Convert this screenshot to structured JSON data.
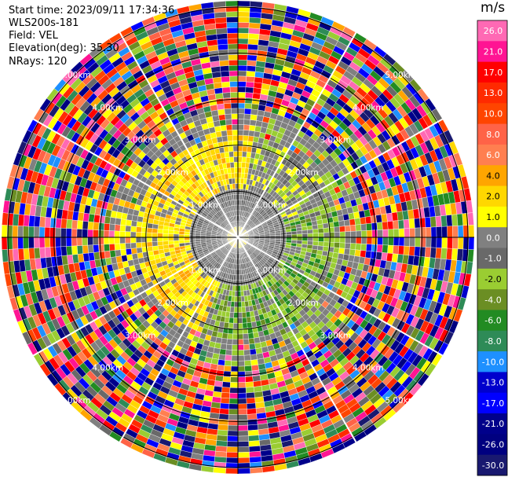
{
  "info": {
    "start_time": "Start time: 2023/09/11 17:34:36",
    "instrument": "WLS200s-181",
    "field": "Field: VEL",
    "elevation": "Elevation(deg): 35.30",
    "nrays": "NRays: 120"
  },
  "colorbar": {
    "unit": "m/s",
    "ticks": [
      "26.0",
      "21.0",
      "17.0",
      "13.0",
      "10.0",
      "8.0",
      "6.0",
      "4.0",
      "2.0",
      "1.0",
      "0.0",
      "-1.0",
      "-2.0",
      "-4.0",
      "-6.0",
      "-8.0",
      "-10.0",
      "-13.0",
      "-17.0",
      "-21.0",
      "-26.0",
      "-30.0"
    ],
    "colors": [
      "#ff69b4",
      "#ff1493",
      "#ff0000",
      "#ff2a00",
      "#ff4500",
      "#ff6347",
      "#ff7f50",
      "#ffa500",
      "#ffd700",
      "#ffff00",
      "#808080",
      "#696969",
      "#9acd32",
      "#6b8e23",
      "#228b22",
      "#2e8b57",
      "#1e90ff",
      "#0000cd",
      "#0000ff",
      "#00008b",
      "#000080",
      "#191970"
    ]
  },
  "chart_data": {
    "type": "heatmap",
    "title": "",
    "field": "VEL",
    "units": "m/s",
    "nrays": 120,
    "elevation_deg": 35.3,
    "range_ring_labels": [
      "1.00km",
      "2.00km",
      "3.00km",
      "4.00km",
      "5.00km"
    ],
    "value_bins": [
      -30,
      -26,
      -21,
      -17,
      -13,
      -10,
      -8,
      -6,
      -4,
      -2,
      -1,
      0,
      1,
      2,
      4,
      6,
      8,
      10,
      13,
      17,
      21,
      26
    ],
    "pattern": {
      "inner_region_max_range_km": 2.2,
      "positive_sector": "west/north-west (yellow, ~2 to 4 m/s)",
      "negative_sector": "east/south-east (green, ~-1 to -4 m/s)",
      "near_zero_core": "grey, ~0 m/s within ~1 km",
      "outer_region": "noise (all bins) beyond ~2.5 km"
    }
  }
}
